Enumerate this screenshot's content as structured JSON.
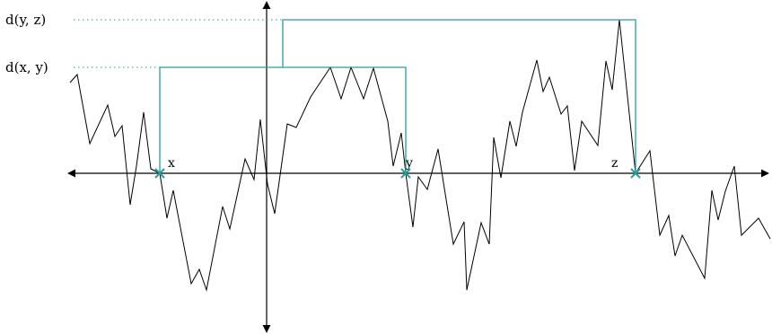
{
  "labels": {
    "d_xy": "d(x, y)",
    "d_yz": "d(y, z)",
    "point_x": "x",
    "point_y": "y",
    "point_z": "z"
  },
  "colors": {
    "accent": "#2a9d9a",
    "curve": "#000000",
    "axis": "#000000"
  },
  "icons": {
    "marker": "cross-marker-icon",
    "arrowhead": "arrowhead-icon"
  }
}
